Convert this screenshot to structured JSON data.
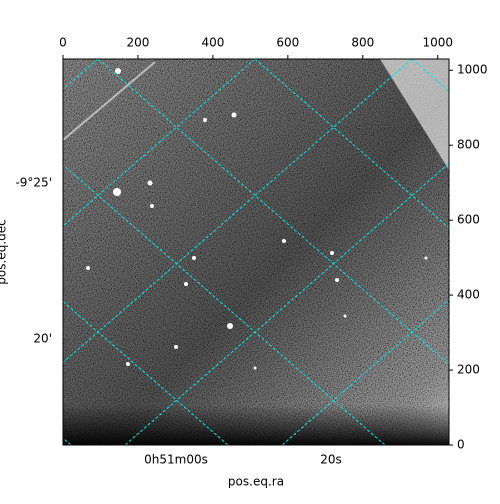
{
  "chart_data": {
    "type": "image",
    "xlabel": "pos.eq.ra",
    "ylabel": "pos.eq.dec",
    "xlim": [
      0,
      1030
    ],
    "ylim": [
      0,
      1030
    ],
    "xticks": [
      0,
      200,
      400,
      600,
      800,
      1000
    ],
    "yticks": [
      0,
      200,
      400,
      600,
      800,
      1000
    ],
    "ra_labels": [
      "0h51m00s",
      "20s"
    ],
    "dec_labels": [
      "-9°25'",
      "20'"
    ],
    "grid_color": "#00e5e5"
  }
}
